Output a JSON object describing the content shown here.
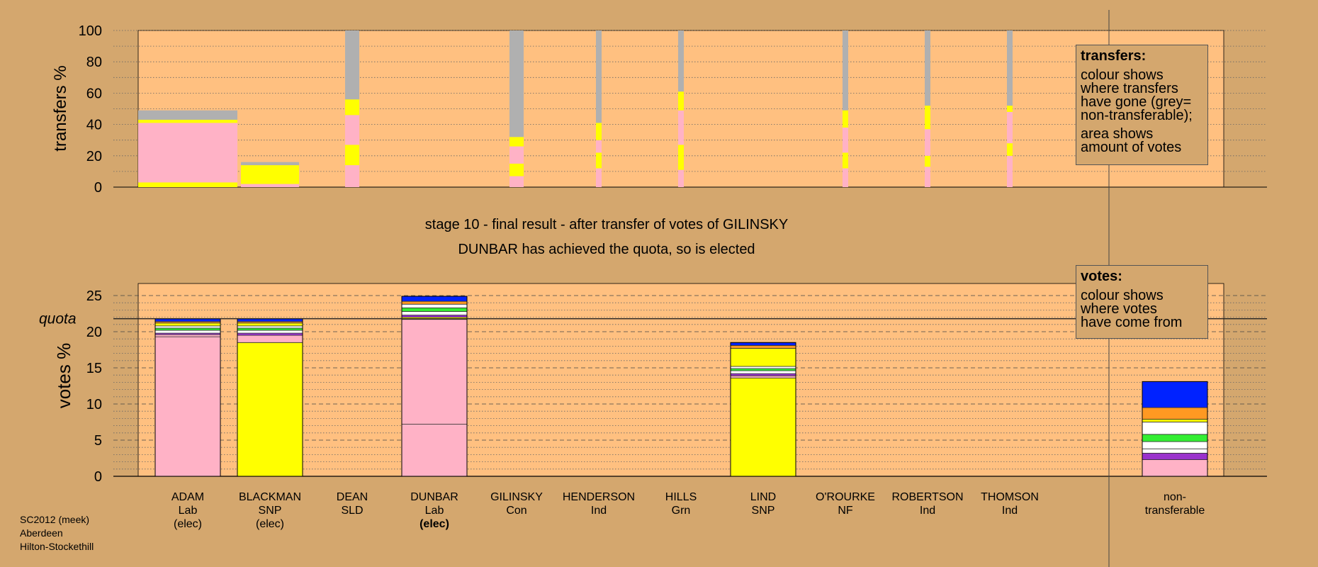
{
  "chart_data": [
    {
      "type": "bar",
      "title": "transfers",
      "ylabel": "transfers %",
      "ylim": [
        0,
        100
      ],
      "yticks": [
        0,
        20,
        40,
        60,
        80,
        100
      ],
      "categories": [
        "ADAM",
        "BLACKMAN",
        "DEAN",
        "DUNBAR",
        "GILINSKY",
        "HENDERSON",
        "HILLS",
        "LIND",
        "O'ROURKE",
        "ROBERTSON",
        "THOMSON"
      ],
      "bars": [
        {
          "candidate": "ADAM",
          "width": "wide",
          "segments": [
            {
              "from": 0,
              "to": 3,
              "color": "#ffff00"
            },
            {
              "from": 3,
              "to": 41,
              "color": "#ffb2c6"
            },
            {
              "from": 41,
              "to": 43,
              "color": "#ffff00"
            },
            {
              "from": 43,
              "to": 49,
              "color": "#b0b0b0"
            }
          ]
        },
        {
          "candidate": "BLACKMAN",
          "width": "medium",
          "segments": [
            {
              "from": 0,
              "to": 2,
              "color": "#ffb2c6"
            },
            {
              "from": 2,
              "to": 14,
              "color": "#ffff00"
            },
            {
              "from": 14,
              "to": 16,
              "color": "#b0b0b0"
            }
          ]
        },
        {
          "candidate": "DEAN",
          "width": "thin",
          "segments": [
            {
              "from": 0,
              "to": 14,
              "color": "#ffb2c6"
            },
            {
              "from": 14,
              "to": 27,
              "color": "#ffff00"
            },
            {
              "from": 27,
              "to": 46,
              "color": "#ffb2c6"
            },
            {
              "from": 46,
              "to": 56,
              "color": "#ffff00"
            },
            {
              "from": 56,
              "to": 100,
              "color": "#b0b0b0"
            }
          ]
        },
        {
          "candidate": "GILINSKY",
          "width": "thin",
          "segments": [
            {
              "from": 0,
              "to": 7,
              "color": "#ffb2c6"
            },
            {
              "from": 7,
              "to": 15,
              "color": "#ffff00"
            },
            {
              "from": 15,
              "to": 26,
              "color": "#ffb2c6"
            },
            {
              "from": 26,
              "to": 32,
              "color": "#ffff00"
            },
            {
              "from": 32,
              "to": 100,
              "color": "#b0b0b0"
            }
          ]
        },
        {
          "candidate": "HENDERSON",
          "width": "hair",
          "segments": [
            {
              "from": 0,
              "to": 12,
              "color": "#ffb2c6"
            },
            {
              "from": 12,
              "to": 22,
              "color": "#ffff00"
            },
            {
              "from": 22,
              "to": 30,
              "color": "#ffb2c6"
            },
            {
              "from": 30,
              "to": 41,
              "color": "#ffff00"
            },
            {
              "from": 41,
              "to": 100,
              "color": "#b0b0b0"
            }
          ]
        },
        {
          "candidate": "HILLS",
          "width": "hair",
          "segments": [
            {
              "from": 0,
              "to": 11,
              "color": "#ffb2c6"
            },
            {
              "from": 11,
              "to": 27,
              "color": "#ffff00"
            },
            {
              "from": 27,
              "to": 49,
              "color": "#ffb2c6"
            },
            {
              "from": 49,
              "to": 61,
              "color": "#ffff00"
            },
            {
              "from": 61,
              "to": 100,
              "color": "#b0b0b0"
            }
          ]
        },
        {
          "candidate": "O'ROURKE",
          "width": "hair",
          "segments": [
            {
              "from": 0,
              "to": 12,
              "color": "#ffb2c6"
            },
            {
              "from": 12,
              "to": 22,
              "color": "#ffff00"
            },
            {
              "from": 22,
              "to": 38,
              "color": "#ffb2c6"
            },
            {
              "from": 38,
              "to": 49,
              "color": "#ffff00"
            },
            {
              "from": 49,
              "to": 100,
              "color": "#b0b0b0"
            }
          ]
        },
        {
          "candidate": "ROBERTSON",
          "width": "hair",
          "segments": [
            {
              "from": 0,
              "to": 13,
              "color": "#ffb2c6"
            },
            {
              "from": 13,
              "to": 20,
              "color": "#ffff00"
            },
            {
              "from": 20,
              "to": 37,
              "color": "#ffb2c6"
            },
            {
              "from": 37,
              "to": 52,
              "color": "#ffff00"
            },
            {
              "from": 52,
              "to": 100,
              "color": "#b0b0b0"
            }
          ]
        },
        {
          "candidate": "THOMSON",
          "width": "hair",
          "segments": [
            {
              "from": 0,
              "to": 20,
              "color": "#ffb2c6"
            },
            {
              "from": 20,
              "to": 28,
              "color": "#ffff00"
            },
            {
              "from": 28,
              "to": 48,
              "color": "#ffb2c6"
            },
            {
              "from": 48,
              "to": 52,
              "color": "#ffff00"
            },
            {
              "from": 52,
              "to": 100,
              "color": "#b0b0b0"
            }
          ]
        }
      ]
    },
    {
      "type": "bar",
      "title": "votes",
      "ylabel": "votes %",
      "ylim": [
        0,
        25
      ],
      "yticks": [
        0,
        5,
        10,
        15,
        20,
        25
      ],
      "quota": 21.8,
      "quota_label": "quota",
      "categories": [
        {
          "name": "ADAM",
          "party": "Lab",
          "status": "(elec)",
          "status_bold": false
        },
        {
          "name": "BLACKMAN",
          "party": "SNP",
          "status": "(elec)",
          "status_bold": false
        },
        {
          "name": "DEAN",
          "party": "SLD",
          "status": "",
          "status_bold": false
        },
        {
          "name": "DUNBAR",
          "party": "Lab",
          "status": "(elec)",
          "status_bold": true
        },
        {
          "name": "GILINSKY",
          "party": "Con",
          "status": "",
          "status_bold": false
        },
        {
          "name": "HENDERSON",
          "party": "Ind",
          "status": "",
          "status_bold": false
        },
        {
          "name": "HILLS",
          "party": "Grn",
          "status": "",
          "status_bold": false
        },
        {
          "name": "LIND",
          "party": "SNP",
          "status": "",
          "status_bold": false
        },
        {
          "name": "O'ROURKE",
          "party": "NF",
          "status": "",
          "status_bold": false
        },
        {
          "name": "ROBERTSON",
          "party": "Ind",
          "status": "",
          "status_bold": false
        },
        {
          "name": "THOMSON",
          "party": "Ind",
          "status": "",
          "status_bold": false
        },
        {
          "name": "non-",
          "party": "transferable",
          "status": "",
          "status_bold": false
        }
      ],
      "bars": [
        {
          "candidate": "ADAM",
          "segments": [
            {
              "from": 0,
              "to": 19.3,
              "color": "#ffb2c6"
            },
            {
              "from": 19.3,
              "to": 19.6,
              "color": "#ffb2c6"
            },
            {
              "from": 19.6,
              "to": 19.8,
              "color": "#9933cc"
            },
            {
              "from": 19.8,
              "to": 20.2,
              "color": "#ffffff"
            },
            {
              "from": 20.2,
              "to": 20.5,
              "color": "#33ee33"
            },
            {
              "from": 20.5,
              "to": 20.8,
              "color": "#ffffff"
            },
            {
              "from": 20.8,
              "to": 21.2,
              "color": "#ffff00"
            },
            {
              "from": 21.2,
              "to": 21.4,
              "color": "#ff9922"
            },
            {
              "from": 21.4,
              "to": 21.8,
              "color": "#0022ff"
            }
          ]
        },
        {
          "candidate": "BLACKMAN",
          "segments": [
            {
              "from": 0,
              "to": 18.5,
              "color": "#ffff00"
            },
            {
              "from": 18.5,
              "to": 19.5,
              "color": "#ffb2c6"
            },
            {
              "from": 19.5,
              "to": 19.8,
              "color": "#9933cc"
            },
            {
              "from": 19.8,
              "to": 20.2,
              "color": "#ffffff"
            },
            {
              "from": 20.2,
              "to": 20.5,
              "color": "#33ee33"
            },
            {
              "from": 20.5,
              "to": 20.8,
              "color": "#ffffff"
            },
            {
              "from": 20.8,
              "to": 21.2,
              "color": "#ffff00"
            },
            {
              "from": 21.2,
              "to": 21.4,
              "color": "#ff9922"
            },
            {
              "from": 21.4,
              "to": 21.8,
              "color": "#0022ff"
            }
          ]
        },
        {
          "candidate": "DUNBAR",
          "segments": [
            {
              "from": 0,
              "to": 7.2,
              "color": "#ffb2c6"
            },
            {
              "from": 7.2,
              "to": 21.7,
              "color": "#ffb2c6"
            },
            {
              "from": 21.7,
              "to": 22.0,
              "color": "#ffff00"
            },
            {
              "from": 22.0,
              "to": 22.3,
              "color": "#9933cc"
            },
            {
              "from": 22.3,
              "to": 22.8,
              "color": "#ffffff"
            },
            {
              "from": 22.8,
              "to": 23.3,
              "color": "#33ee33"
            },
            {
              "from": 23.3,
              "to": 23.8,
              "color": "#ffffff"
            },
            {
              "from": 23.8,
              "to": 24.2,
              "color": "#ff9922"
            },
            {
              "from": 24.2,
              "to": 24.9,
              "color": "#0022ff"
            }
          ]
        },
        {
          "candidate": "LIND",
          "segments": [
            {
              "from": 0,
              "to": 13.6,
              "color": "#ffff00"
            },
            {
              "from": 13.6,
              "to": 13.9,
              "color": "#ffb2c6"
            },
            {
              "from": 13.9,
              "to": 14.2,
              "color": "#9933cc"
            },
            {
              "from": 14.2,
              "to": 14.6,
              "color": "#ffffff"
            },
            {
              "from": 14.6,
              "to": 14.9,
              "color": "#33ee33"
            },
            {
              "from": 14.9,
              "to": 15.2,
              "color": "#ffffff"
            },
            {
              "from": 15.2,
              "to": 17.7,
              "color": "#ffff00"
            },
            {
              "from": 17.7,
              "to": 18.1,
              "color": "#ff9922"
            },
            {
              "from": 18.1,
              "to": 18.5,
              "color": "#0022ff"
            }
          ]
        },
        {
          "candidate": "non-transferable",
          "segments": [
            {
              "from": 0,
              "to": 2.3,
              "color": "#ffb2c6"
            },
            {
              "from": 2.3,
              "to": 3.2,
              "color": "#9933cc"
            },
            {
              "from": 3.2,
              "to": 3.8,
              "color": "#ffffff"
            },
            {
              "from": 3.8,
              "to": 4.8,
              "color": "#ffffff"
            },
            {
              "from": 4.8,
              "to": 5.8,
              "color": "#33ee33"
            },
            {
              "from": 5.8,
              "to": 7.5,
              "color": "#ffffff"
            },
            {
              "from": 7.5,
              "to": 7.9,
              "color": "#ffff00"
            },
            {
              "from": 7.9,
              "to": 9.5,
              "color": "#ff9922"
            },
            {
              "from": 9.5,
              "to": 13.1,
              "color": "#0022ff"
            }
          ]
        }
      ]
    }
  ],
  "status_line_1": "stage 10 - final result - after transfer of votes of GILINSKY",
  "status_line_2": "DUNBAR has achieved the quota, so is elected",
  "transfers_legend": {
    "heading": "transfers:",
    "lines_1": [
      "colour shows",
      "where transfers",
      "have gone (grey=",
      "non-transferable);"
    ],
    "lines_2": [
      "area shows",
      "amount of votes"
    ]
  },
  "votes_legend": {
    "heading": "votes:",
    "lines": [
      "colour shows",
      "where votes",
      "have come from"
    ]
  },
  "footer": [
    "SC2012 (meek)",
    "Aberdeen",
    "Hilton-Stockethill"
  ],
  "colors": {
    "background": "#d4a76e",
    "panel": "#ffc080",
    "grey": "#b0b0b0",
    "pink": "#ffb2c6",
    "yellow": "#ffff00",
    "blue": "#0022ff",
    "orange": "#ff9922",
    "green": "#33ee33",
    "purple": "#9933cc"
  }
}
